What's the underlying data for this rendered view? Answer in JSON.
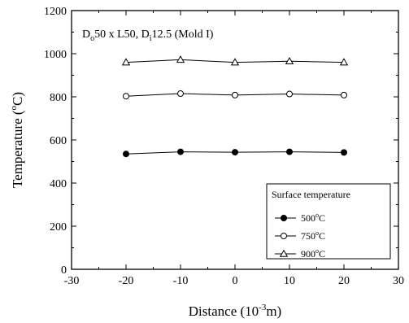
{
  "chart_data": {
    "type": "line",
    "annotation": {
      "parts": [
        {
          "text": "D",
          "role": "base"
        },
        {
          "text": "o",
          "role": "sub"
        },
        {
          "text": "50 x L50, D",
          "role": "base"
        },
        {
          "text": "i",
          "role": "sub"
        },
        {
          "text": "12.5 (Mold I)",
          "role": "base"
        }
      ]
    },
    "xlabel": {
      "prefix": "Distance (10",
      "sup": "-3",
      "suffix": "m)"
    },
    "ylabel": {
      "prefix": "Temperature (",
      "sup": "o",
      "suffix": "C)"
    },
    "xlim": [
      -30,
      30
    ],
    "ylim": [
      0,
      1200
    ],
    "xticks": [
      "-30",
      "-20",
      "-10",
      "0",
      "10",
      "20",
      "30"
    ],
    "yticks": [
      "0",
      "200",
      "400",
      "600",
      "800",
      "1000",
      "1200"
    ],
    "grid": false,
    "legend": {
      "title": "Surface temperature",
      "position": "bottom-right"
    },
    "series": [
      {
        "name": "500°C",
        "label": {
          "num": "500",
          "sup": "o",
          "unit": "C"
        },
        "marker": "filled-circle",
        "x": [
          -20,
          -10,
          0,
          10,
          20
        ],
        "y": [
          535,
          545,
          543,
          545,
          542
        ]
      },
      {
        "name": "750°C",
        "label": {
          "num": "750",
          "sup": "o",
          "unit": "C"
        },
        "marker": "open-circle",
        "x": [
          -20,
          -10,
          0,
          10,
          20
        ],
        "y": [
          803,
          815,
          808,
          813,
          808
        ]
      },
      {
        "name": "900°C",
        "label": {
          "num": "900",
          "sup": "o",
          "unit": "C"
        },
        "marker": "open-triangle",
        "x": [
          -20,
          -10,
          0,
          10,
          20
        ],
        "y": [
          960,
          972,
          960,
          965,
          960
        ]
      }
    ]
  }
}
